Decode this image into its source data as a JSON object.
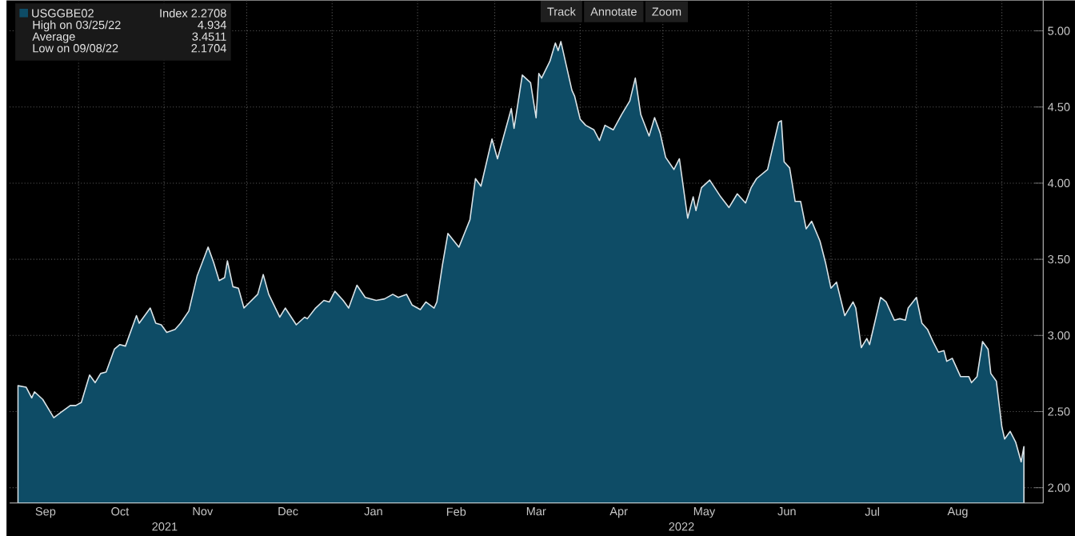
{
  "chart_data": {
    "type": "area",
    "x": [
      "2021-09-09",
      "2021-09-12",
      "2021-09-14",
      "2021-09-15",
      "2021-09-18",
      "2021-09-22",
      "2021-09-25",
      "2021-09-28",
      "2021-09-30",
      "2021-10-02",
      "2021-10-05",
      "2021-10-07",
      "2021-10-09",
      "2021-10-11",
      "2021-10-14",
      "2021-10-16",
      "2021-10-18",
      "2021-10-22",
      "2021-10-23",
      "2021-10-27",
      "2021-10-29",
      "2021-10-31",
      "2021-11-02",
      "2021-11-05",
      "2021-11-07",
      "2021-11-10",
      "2021-11-13",
      "2021-11-17",
      "2021-11-19",
      "2021-11-21",
      "2021-11-23",
      "2021-11-24",
      "2021-11-26",
      "2021-11-28",
      "2021-11-30",
      "2021-12-05",
      "2021-12-07",
      "2021-12-09",
      "2021-12-13",
      "2021-12-15",
      "2021-12-19",
      "2021-12-22",
      "2021-12-23",
      "2021-12-26",
      "2021-12-29",
      "2021-12-31",
      "2022-01-02",
      "2022-01-05",
      "2022-01-07",
      "2022-01-10",
      "2022-01-13",
      "2022-01-17",
      "2022-01-20",
      "2022-01-23",
      "2022-01-25",
      "2022-01-28",
      "2022-01-30",
      "2022-02-02",
      "2022-02-04",
      "2022-02-07",
      "2022-02-08",
      "2022-02-10",
      "2022-02-12",
      "2022-02-16",
      "2022-02-18",
      "2022-02-20",
      "2022-02-22",
      "2022-02-24",
      "2022-02-28",
      "2022-03-02",
      "2022-03-07",
      "2022-03-08",
      "2022-03-11",
      "2022-03-14",
      "2022-03-16",
      "2022-03-17",
      "2022-03-18",
      "2022-03-21",
      "2022-03-23",
      "2022-03-24",
      "2022-03-25",
      "2022-03-29",
      "2022-03-30",
      "2022-04-01",
      "2022-04-03",
      "2022-04-06",
      "2022-04-08",
      "2022-04-10",
      "2022-04-13",
      "2022-04-16",
      "2022-04-19",
      "2022-04-21",
      "2022-04-23",
      "2022-04-26",
      "2022-04-28",
      "2022-04-30",
      "2022-05-02",
      "2022-05-05",
      "2022-05-07",
      "2022-05-10",
      "2022-05-12",
      "2022-05-13",
      "2022-05-15",
      "2022-05-18",
      "2022-05-22",
      "2022-05-25",
      "2022-05-28",
      "2022-05-31",
      "2022-06-02",
      "2022-06-04",
      "2022-06-08",
      "2022-06-12",
      "2022-06-13",
      "2022-06-14",
      "2022-06-16",
      "2022-06-18",
      "2022-06-20",
      "2022-06-22",
      "2022-06-24",
      "2022-06-27",
      "2022-06-29",
      "2022-07-01",
      "2022-07-03",
      "2022-07-06",
      "2022-07-09",
      "2022-07-10",
      "2022-07-12",
      "2022-07-14",
      "2022-07-15",
      "2022-07-19",
      "2022-07-21",
      "2022-07-24",
      "2022-07-26",
      "2022-07-28",
      "2022-07-29",
      "2022-08-01",
      "2022-08-03",
      "2022-08-05",
      "2022-08-07",
      "2022-08-09",
      "2022-08-11",
      "2022-08-12",
      "2022-08-14",
      "2022-08-17",
      "2022-08-20",
      "2022-08-21",
      "2022-08-23",
      "2022-08-25",
      "2022-08-27",
      "2022-08-28",
      "2022-08-30",
      "2022-09-01",
      "2022-09-02",
      "2022-09-04",
      "2022-09-06",
      "2022-09-08",
      "2022-09-09"
    ],
    "series": [
      {
        "name": "USGGBE02",
        "color": "#0e4c66",
        "values": [
          2.67,
          2.66,
          2.59,
          2.63,
          2.58,
          2.46,
          2.5,
          2.54,
          2.54,
          2.56,
          2.74,
          2.69,
          2.75,
          2.76,
          2.91,
          2.94,
          2.93,
          3.13,
          3.08,
          3.18,
          3.08,
          3.07,
          3.02,
          3.04,
          3.08,
          3.16,
          3.39,
          3.58,
          3.48,
          3.36,
          3.38,
          3.49,
          3.32,
          3.31,
          3.18,
          3.27,
          3.4,
          3.27,
          3.12,
          3.18,
          3.07,
          3.12,
          3.11,
          3.18,
          3.23,
          3.22,
          3.29,
          3.23,
          3.18,
          3.33,
          3.25,
          3.23,
          3.24,
          3.27,
          3.25,
          3.27,
          3.2,
          3.17,
          3.22,
          3.18,
          3.22,
          3.46,
          3.67,
          3.58,
          3.67,
          3.76,
          4.03,
          3.98,
          4.29,
          4.16,
          4.49,
          4.36,
          4.71,
          4.66,
          4.43,
          4.72,
          4.69,
          4.8,
          4.92,
          4.87,
          4.93,
          4.61,
          4.57,
          4.42,
          4.38,
          4.35,
          4.28,
          4.38,
          4.35,
          4.45,
          4.54,
          4.69,
          4.45,
          4.31,
          4.43,
          4.33,
          4.17,
          4.09,
          4.16,
          3.77,
          3.91,
          3.82,
          3.97,
          4.02,
          3.91,
          3.84,
          3.93,
          3.87,
          3.97,
          4.03,
          4.09,
          4.4,
          4.41,
          4.14,
          4.1,
          3.88,
          3.88,
          3.7,
          3.75,
          3.62,
          3.48,
          3.31,
          3.35,
          3.13,
          3.22,
          3.18,
          2.92,
          2.98,
          2.94,
          3.25,
          3.22,
          3.1,
          3.11,
          3.1,
          3.18,
          3.25,
          3.08,
          3.04,
          2.96,
          2.89,
          2.9,
          2.83,
          2.85,
          2.73,
          2.73,
          2.69,
          2.73,
          2.96,
          2.91,
          2.75,
          2.7,
          2.4,
          2.32,
          2.37,
          2.3,
          2.17,
          2.27
        ]
      }
    ],
    "xlim": [
      "2021-09-06",
      "2022-09-16"
    ],
    "xticks": [
      {
        "value": "2021-09-19",
        "label": "Sep"
      },
      {
        "value": "2021-10-01",
        "label": null
      },
      {
        "value": "2021-10-16",
        "label": "Oct"
      },
      {
        "value": "2021-11-01",
        "label": null
      },
      {
        "value": "2021-11-15",
        "label": "Nov"
      },
      {
        "value": "2021-12-01",
        "label": null
      },
      {
        "value": "2021-12-16",
        "label": "Dec"
      },
      {
        "value": "2022-01-01",
        "label": null
      },
      {
        "value": "2022-01-16",
        "label": "Jan"
      },
      {
        "value": "2022-02-01",
        "label": null
      },
      {
        "value": "2022-02-15",
        "label": "Feb"
      },
      {
        "value": "2022-03-01",
        "label": null
      },
      {
        "value": "2022-03-16",
        "label": "Mar"
      },
      {
        "value": "2022-04-01",
        "label": null
      },
      {
        "value": "2022-04-15",
        "label": "Apr"
      },
      {
        "value": "2022-05-01",
        "label": null
      },
      {
        "value": "2022-05-16",
        "label": "May"
      },
      {
        "value": "2022-06-01",
        "label": null
      },
      {
        "value": "2022-06-15",
        "label": "Jun"
      },
      {
        "value": "2022-07-01",
        "label": null
      },
      {
        "value": "2022-07-16",
        "label": "Jul"
      },
      {
        "value": "2022-08-01",
        "label": null
      },
      {
        "value": "2022-08-16",
        "label": "Aug"
      },
      {
        "value": "2022-09-01",
        "label": null
      }
    ],
    "ylim": [
      1.9,
      5.2
    ],
    "yticks": [
      {
        "value": 2,
        "label": "2.00"
      },
      {
        "value": 2.5,
        "label": "2.50"
      },
      {
        "value": 3,
        "label": "3.00"
      },
      {
        "value": 3.5,
        "label": "3.50"
      },
      {
        "value": 4,
        "label": "4.00"
      },
      {
        "value": 4.5,
        "label": "4.50"
      },
      {
        "value": 5,
        "label": "5.00"
      }
    ],
    "grid": true,
    "legend": "top left",
    "annotations": [
      "Index 2.2708",
      "High on 03/25/22",
      "4.934",
      "Average",
      "3.4511",
      "Low on 09/08/22",
      "2.1704",
      "Track",
      "Annotate",
      "Zoom",
      "2021",
      "2022"
    ]
  }
}
